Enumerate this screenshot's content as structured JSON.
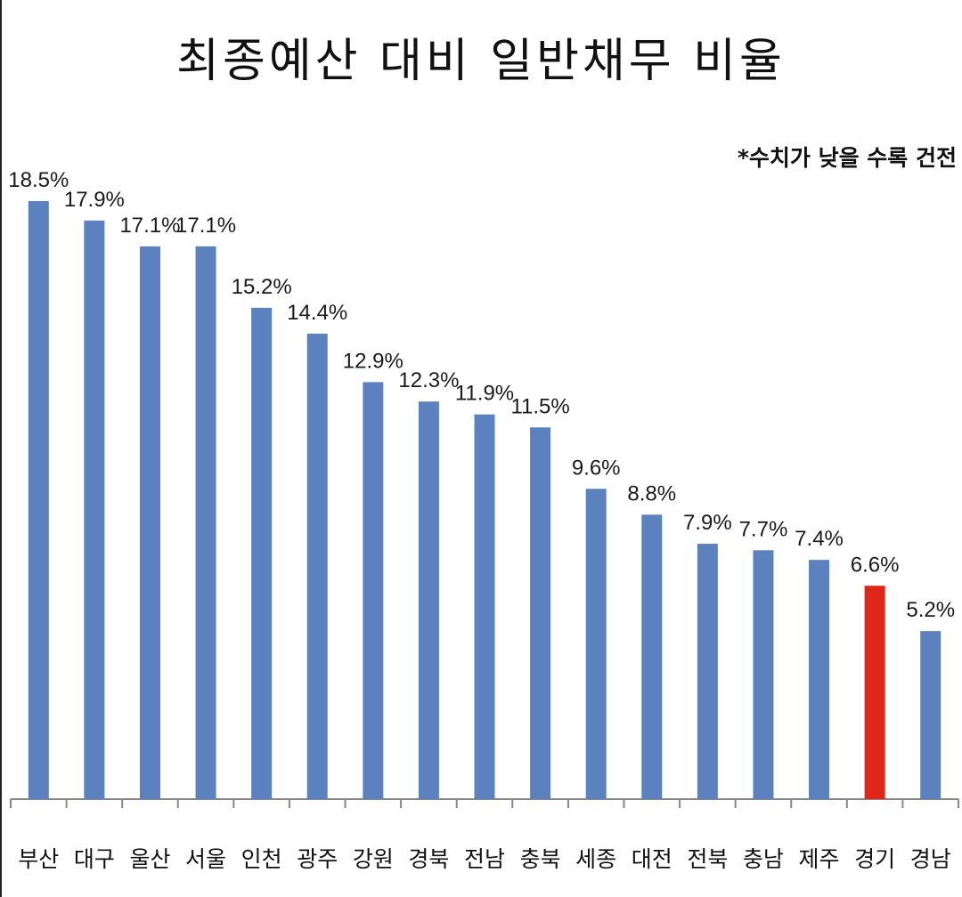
{
  "chart_data": {
    "type": "bar",
    "title": "최종예산 대비 일반채무 비율",
    "note": "*수치가 낮을 수록 건전",
    "categories": [
      "부산",
      "대구",
      "울산",
      "서울",
      "인천",
      "광주",
      "강원",
      "경북",
      "전남",
      "충북",
      "세종",
      "대전",
      "전북",
      "충남",
      "제주",
      "경기",
      "경남"
    ],
    "values": [
      18.5,
      17.9,
      17.1,
      17.1,
      15.2,
      14.4,
      12.9,
      12.3,
      11.9,
      11.5,
      9.6,
      8.8,
      7.9,
      7.7,
      7.4,
      6.6,
      5.2
    ],
    "value_labels": [
      "18.5%",
      "17.9%",
      "17.1%",
      "17.1%",
      "15.2%",
      "14.4%",
      "12.9%",
      "12.3%",
      "11.9%",
      "11.5%",
      "9.6%",
      "8.8%",
      "7.9%",
      "7.7%",
      "7.4%",
      "6.6%",
      "5.2%"
    ],
    "ylim": [
      0,
      18.5
    ],
    "grid": false,
    "colors": {
      "default": "#5b82bf",
      "highlight": "#e0261b",
      "axis": "#888888"
    },
    "highlight_category": "경기"
  }
}
